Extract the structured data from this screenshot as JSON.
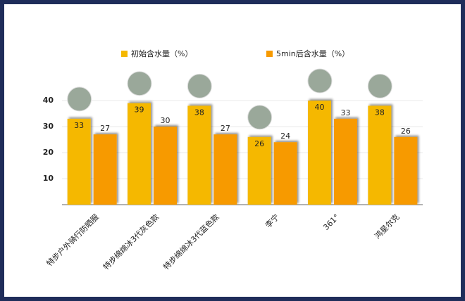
{
  "chart_data": {
    "type": "bar",
    "categories": [
      "特步户外骑行防晒服",
      "特步绵绵冰3代灰色款",
      "特步绵绵冰3代蓝色款",
      "李宁",
      "361°",
      "鸿星尔克"
    ],
    "series": [
      {
        "name": "初始含水量（%）",
        "color": "#f5b800",
        "values": [
          33,
          39,
          38,
          26,
          40,
          38
        ]
      },
      {
        "name": "5min后含水量（%）",
        "color": "#f79a00",
        "values": [
          27,
          30,
          27,
          24,
          33,
          26
        ]
      }
    ],
    "ylim": [
      0,
      45
    ],
    "yticks": [
      10,
      20,
      30,
      40
    ],
    "grid": true
  }
}
